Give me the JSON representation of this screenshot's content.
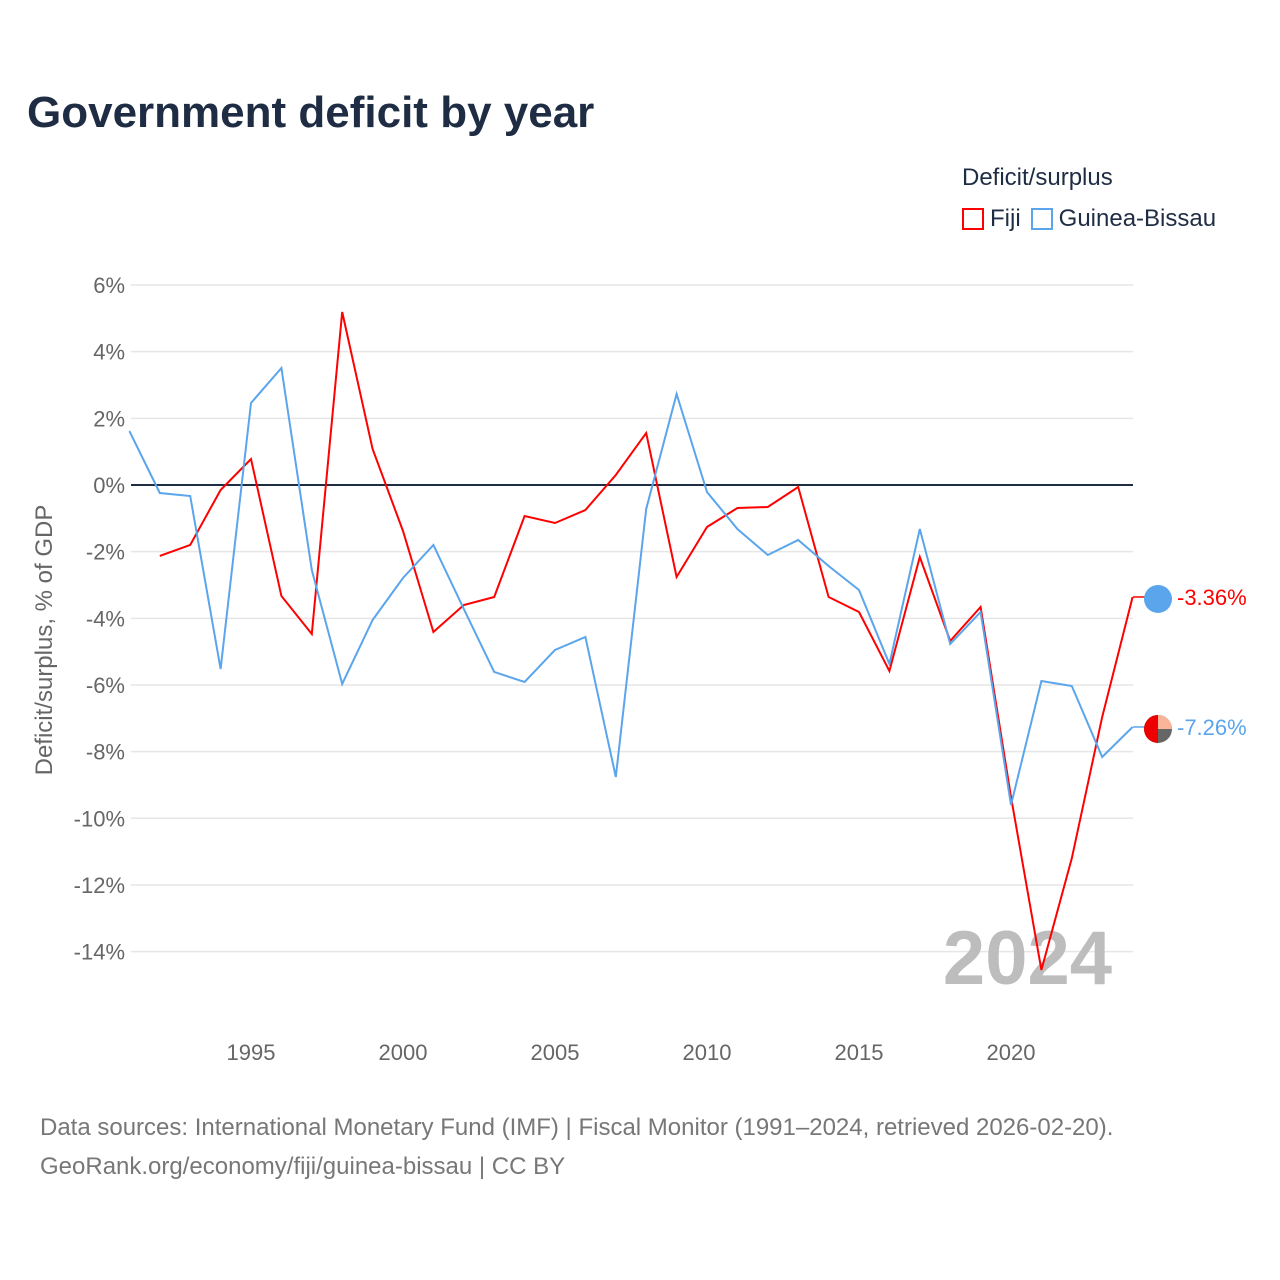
{
  "title": "Government deficit by year",
  "legend": {
    "title": "Deficit/surplus",
    "items": [
      {
        "label": "Fiji",
        "color": "#ff0000"
      },
      {
        "label": "Guinea-Bissau",
        "color": "#5aa5ec"
      }
    ]
  },
  "source": {
    "line1": "Data sources: International Monetary Fund (IMF) | Fiscal Monitor (1991–2024, retrieved 2026-02-20).",
    "line2": "GeoRank.org/economy/fiji/guinea-bissau | CC BY"
  },
  "chart_data": {
    "type": "line",
    "title": "Government deficit by year",
    "ylabel": "Deficit/surplus, % of GDP",
    "xlabel": "",
    "year_watermark": "2024",
    "xlim": [
      1991,
      2024
    ],
    "ylim": [
      -16,
      6.5
    ],
    "xticks": [
      1995,
      2000,
      2005,
      2010,
      2015,
      2020
    ],
    "yticks": [
      6,
      4,
      2,
      0,
      -2,
      -4,
      -6,
      -8,
      -10,
      -12,
      -14
    ],
    "series": [
      {
        "name": "Fiji",
        "color": "#ff0000",
        "end_label": "-3.36%",
        "x": [
          1992,
          1993,
          1994,
          1995,
          1996,
          1997,
          1998,
          1999,
          2000,
          2001,
          2002,
          2003,
          2004,
          2005,
          2006,
          2007,
          2008,
          2009,
          2010,
          2011,
          2012,
          2013,
          2014,
          2015,
          2016,
          2017,
          2018,
          2019,
          2020,
          2021,
          2022,
          2023,
          2024
        ],
        "y": [
          -2.13,
          -1.8,
          -0.15,
          0.78,
          -3.33,
          -4.47,
          5.19,
          1.08,
          -1.38,
          -4.41,
          -3.6,
          -3.36,
          -0.93,
          -1.14,
          -0.75,
          0.3,
          1.56,
          -2.76,
          -1.26,
          -0.69,
          -0.66,
          -0.06,
          -3.36,
          -3.81,
          -5.58,
          -2.16,
          -4.68,
          -3.66,
          -9.36,
          -14.55,
          -11.2,
          -6.96,
          -3.36
        ]
      },
      {
        "name": "Guinea-Bissau",
        "color": "#5aa5ec",
        "end_label": "-7.26%",
        "x": [
          1991,
          1992,
          1993,
          1994,
          1995,
          1996,
          1997,
          1998,
          1999,
          2000,
          2001,
          2002,
          2003,
          2004,
          2005,
          2006,
          2007,
          2008,
          2009,
          2010,
          2011,
          2012,
          2013,
          2014,
          2015,
          2016,
          2017,
          2018,
          2019,
          2020,
          2021,
          2022,
          2023,
          2024
        ],
        "y": [
          1.62,
          -0.24,
          -0.33,
          -5.52,
          2.46,
          3.51,
          -2.55,
          -5.97,
          -4.05,
          -2.79,
          -1.8,
          -3.72,
          -5.61,
          -5.91,
          -4.95,
          -4.56,
          -8.76,
          -0.72,
          2.73,
          -0.21,
          -1.32,
          -2.1,
          -1.65,
          -2.43,
          -3.15,
          -5.37,
          -1.32,
          -4.77,
          -3.81,
          -9.6,
          -5.88,
          -6.03,
          -8.16,
          -7.26
        ]
      }
    ]
  }
}
